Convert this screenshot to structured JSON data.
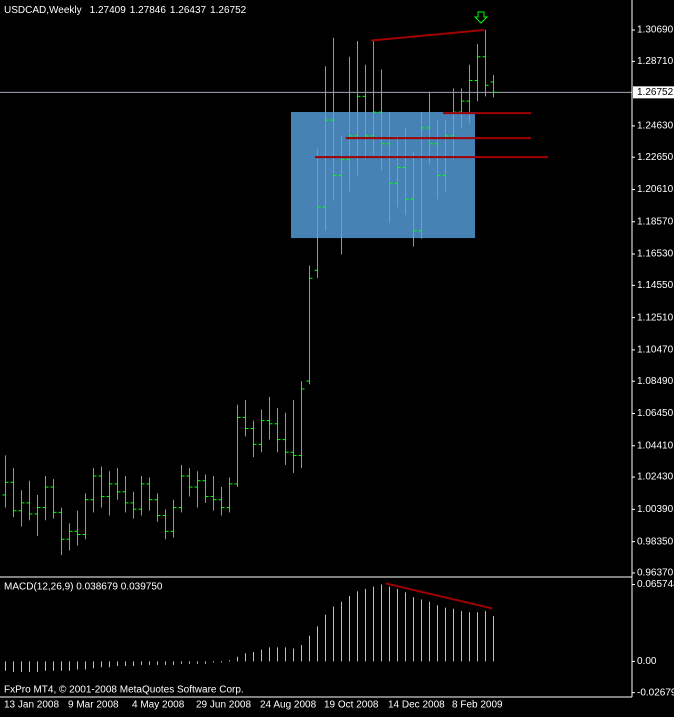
{
  "chart_data": [
    {
      "type": "ohlc",
      "title": "USDCAD,Weekly",
      "categories": [
        "13 Jan 2008",
        null,
        null,
        null,
        null,
        null,
        null,
        null,
        "9 Mar 2008",
        null,
        null,
        null,
        null,
        null,
        null,
        null,
        "4 May 2008",
        null,
        null,
        null,
        null,
        null,
        null,
        null,
        "29 Jun 2008",
        null,
        null,
        null,
        null,
        null,
        null,
        null,
        "24 Aug 2008",
        null,
        null,
        null,
        null,
        null,
        null,
        null,
        "19 Oct 2008",
        null,
        null,
        null,
        null,
        null,
        null,
        null,
        "14 Dec 2008",
        null,
        null,
        null,
        null,
        null,
        null,
        null,
        "8 Feb 2009",
        null,
        null,
        null,
        null,
        null
      ],
      "open": [
        1.013,
        1.021,
        1.003,
        1.008,
        1.001,
        1.005,
        1.018,
        1.002,
        0.985,
        0.99,
        0.988,
        1.01,
        1.025,
        1.012,
        1.02,
        1.015,
        1.008,
        1.004,
        1.02,
        1.01,
        1.0,
        0.99,
        1.005,
        1.025,
        1.018,
        1.022,
        1.012,
        1.01,
        1.005,
        1.02,
        1.062,
        1.055,
        1.045,
        1.06,
        1.058,
        1.048,
        1.04,
        1.038,
        1.085,
        1.155,
        1.195,
        1.25,
        1.215,
        1.225,
        1.24,
        1.265,
        1.24,
        1.255,
        1.235,
        1.21,
        1.22,
        1.2,
        1.18,
        1.245,
        1.235,
        1.215,
        1.24,
        1.255,
        1.262,
        1.275,
        1.29,
        1.27409
      ],
      "high": [
        1.038,
        1.03,
        1.016,
        1.022,
        1.013,
        1.025,
        1.023,
        1.005,
        0.995,
        1.003,
        1.014,
        1.03,
        1.031,
        1.028,
        1.03,
        1.025,
        1.015,
        1.025,
        1.024,
        1.014,
        1.004,
        1.01,
        1.032,
        1.03,
        1.028,
        1.026,
        1.025,
        1.018,
        1.024,
        1.07,
        1.073,
        1.06,
        1.067,
        1.075,
        1.068,
        1.065,
        1.073,
        1.085,
        1.158,
        1.232,
        1.284,
        1.302,
        1.24,
        1.29,
        1.3,
        1.285,
        1.3,
        1.282,
        1.255,
        1.24,
        1.245,
        1.23,
        1.255,
        1.268,
        1.25,
        1.25,
        1.27,
        1.27,
        1.285,
        1.298,
        1.307,
        1.27846
      ],
      "low": [
        1.005,
        0.999,
        0.993,
        0.997,
        0.987,
        0.997,
        0.998,
        0.975,
        0.978,
        0.981,
        0.985,
        1.002,
        1.005,
        1.0,
        1.01,
        1.002,
        0.998,
        1.0,
        1.003,
        0.996,
        0.985,
        0.986,
        1.002,
        1.012,
        1.005,
        1.008,
        1.003,
        1.0,
        1.002,
        1.018,
        1.05,
        1.037,
        1.04,
        1.048,
        1.04,
        1.032,
        1.027,
        1.03,
        1.083,
        1.15,
        1.18,
        1.199,
        1.165,
        1.205,
        1.215,
        1.225,
        1.228,
        1.218,
        1.185,
        1.195,
        1.19,
        1.17,
        1.175,
        1.222,
        1.2,
        1.205,
        1.225,
        1.245,
        1.248,
        1.262,
        1.265,
        1.26437
      ],
      "close": [
        1.021,
        1.003,
        1.008,
        1.001,
        1.005,
        1.018,
        1.002,
        0.985,
        0.99,
        0.988,
        1.01,
        1.025,
        1.012,
        1.02,
        1.015,
        1.008,
        1.004,
        1.02,
        1.01,
        1.0,
        0.99,
        1.005,
        1.025,
        1.018,
        1.022,
        1.012,
        1.01,
        1.005,
        1.02,
        1.062,
        1.055,
        1.045,
        1.06,
        1.058,
        1.048,
        1.04,
        1.038,
        1.08,
        1.15,
        1.195,
        1.25,
        1.215,
        1.225,
        1.24,
        1.265,
        1.24,
        1.255,
        1.235,
        1.21,
        1.22,
        1.2,
        1.18,
        1.245,
        1.235,
        1.215,
        1.24,
        1.255,
        1.262,
        1.275,
        1.29,
        1.272,
        1.26752
      ],
      "color": "#00ff00",
      "ylim": [
        0.9624,
        1.3259
      ],
      "yticks": [
        {
          "value": 1.3069,
          "label": "1.30690"
        },
        {
          "value": 1.2871,
          "label": "1.28710"
        },
        {
          "value": 1.2463,
          "label": "1.24630"
        },
        {
          "value": 1.2265,
          "label": "1.22650"
        },
        {
          "value": 1.2061,
          "label": "1.20610"
        },
        {
          "value": 1.1857,
          "label": "1.18570"
        },
        {
          "value": 1.1653,
          "label": "1.16530"
        },
        {
          "value": 1.1455,
          "label": "1.14550"
        },
        {
          "value": 1.1251,
          "label": "1.12510"
        },
        {
          "value": 1.1047,
          "label": "1.10470"
        },
        {
          "value": 1.0849,
          "label": "1.08490"
        },
        {
          "value": 1.0645,
          "label": "1.06450"
        },
        {
          "value": 1.0441,
          "label": "1.04410"
        },
        {
          "value": 1.0243,
          "label": "1.02430"
        },
        {
          "value": 1.0039,
          "label": "1.00390"
        },
        {
          "value": 0.9835,
          "label": "0.98350"
        },
        {
          "value": 0.9637,
          "label": "0.96370"
        }
      ],
      "current_price": {
        "value": 1.26752,
        "label": "1.26752"
      },
      "rectangle": {
        "x": [
          35.75,
          58.75
        ],
        "y": [
          1.1754,
          1.2551
        ],
        "color": "#4682b4"
      },
      "trendlines": [
        {
          "x": [
            45.75,
            59.9
          ],
          "y": [
            1.3003,
            1.3069
          ],
          "color": "#a00000"
        },
        {
          "x": [
            54.75,
            65.75
          ],
          "y": [
            1.2544,
            1.2544
          ],
          "color": "#a00000"
        },
        {
          "x": [
            42.6,
            65.75
          ],
          "y": [
            1.2386,
            1.2386
          ],
          "color": "#a00000"
        },
        {
          "x": [
            38.75,
            67.9
          ],
          "y": [
            1.2266,
            1.2266
          ],
          "color": "#a00000"
        }
      ],
      "footer": "FxPro MT4, © 2001-2008 MetaQuotes Software Corp."
    },
    {
      "type": "histogram",
      "title": "MACD(12,26,9) 0.038679 0.039750",
      "values": [
        -0.008,
        -0.009,
        -0.009,
        -0.009,
        -0.009,
        -0.008,
        -0.008,
        -0.008,
        -0.008,
        -0.007,
        -0.007,
        -0.006,
        -0.005,
        -0.005,
        -0.004,
        -0.004,
        -0.004,
        -0.003,
        -0.003,
        -0.003,
        -0.003,
        -0.003,
        -0.002,
        -0.002,
        -0.002,
        -0.002,
        -0.001,
        -0.001,
        0.001,
        0.004,
        0.007,
        0.008,
        0.01,
        0.012,
        0.012,
        0.012,
        0.011,
        0.014,
        0.022,
        0.03,
        0.04,
        0.047,
        0.051,
        0.056,
        0.06,
        0.062,
        0.064,
        0.065748,
        0.064,
        0.062,
        0.059,
        0.055,
        0.053,
        0.051,
        0.048,
        0.046,
        0.045,
        0.043,
        0.042,
        0.042,
        0.043,
        0.038679
      ],
      "color": "#c0c0c0",
      "ylim": [
        -0.0305,
        0.0705
      ],
      "yticks": [
        0.065748,
        {
          "value": 0,
          "label": "0.00"
        },
        -0.026798
      ],
      "trendlines": [
        {
          "x": [
            47.6,
            60.9
          ],
          "y": [
            0.0667,
            0.0453
          ],
          "color": "#a00000"
        }
      ]
    }
  ]
}
